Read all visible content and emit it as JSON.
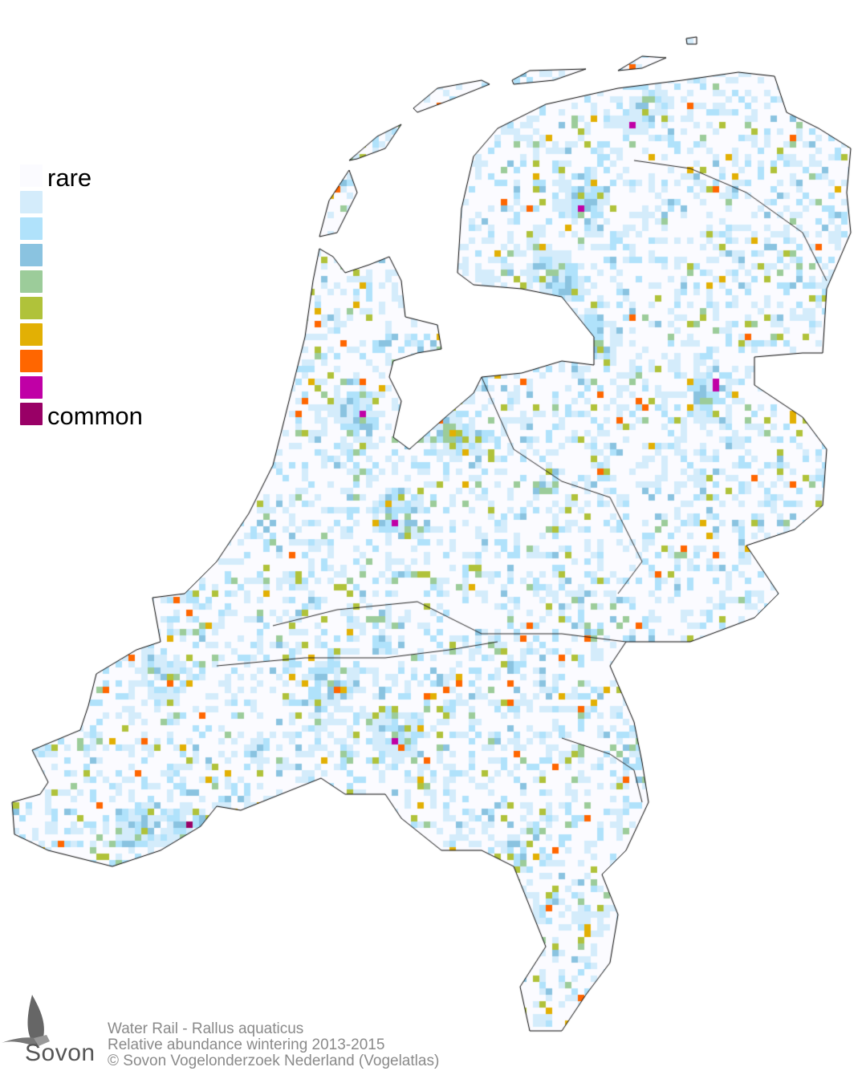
{
  "legend": {
    "rare_label": "rare",
    "common_label": "common",
    "colors": [
      "#fbfbff",
      "#d4ecfb",
      "#b0e2fb",
      "#8ac3e0",
      "#9ccc9a",
      "#b0c23a",
      "#e2b004",
      "#ff6600",
      "#c000a6",
      "#990066"
    ]
  },
  "caption": {
    "line1": "Water Rail - Rallus aquaticus",
    "line2": "Relative abundance wintering 2013-2015",
    "line3": "© Sovon Vogelonderzoek Nederland (Vogelatlas)"
  },
  "logo": {
    "text": "Sovon"
  }
}
